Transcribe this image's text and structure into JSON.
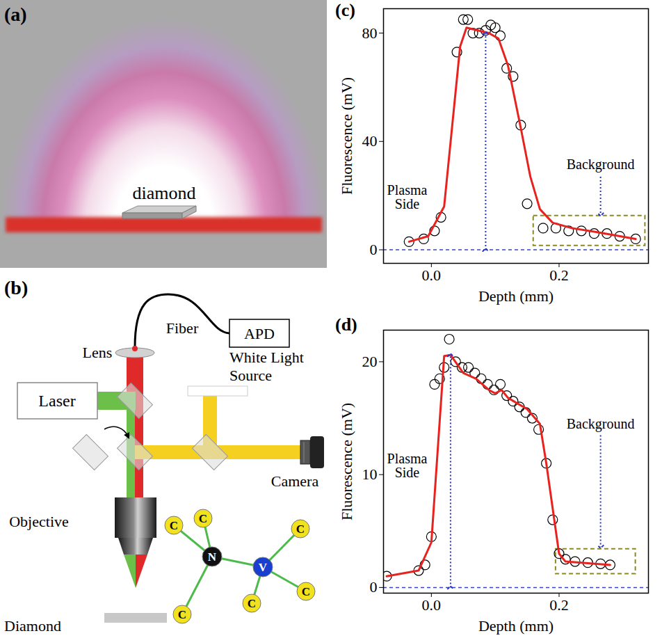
{
  "diagrams": {
    "a": {
      "panel": "(a)",
      "label": "diamond"
    },
    "b": {
      "panel": "(b)",
      "lens": "Lens",
      "fiber": "Fiber",
      "detector": "APD",
      "light_source": "White Light Source",
      "laser": "Laser",
      "camera": "Camera",
      "objective": "Objective",
      "sample": "Diamond",
      "atoms": [
        "C",
        "C",
        "N",
        "V",
        "C",
        "C",
        "C",
        "C"
      ]
    }
  },
  "chart_data": [
    {
      "panel": "(c)",
      "type": "scatter",
      "xlabel": "Depth (mm)",
      "ylabel": "Fluorescence (mV)",
      "xlim": [
        -0.075,
        0.34
      ],
      "ylim": [
        -5,
        89
      ],
      "xticks": [
        {
          "value": 0,
          "label": "0.0"
        },
        {
          "value": 0.2,
          "label": "0.2"
        }
      ],
      "yticks": [
        0,
        40,
        80
      ],
      "series": [
        {
          "type": "scatter",
          "marker": "circle",
          "color": "#000000",
          "x": [
            -0.035,
            -0.012,
            0.005,
            0.015,
            0.04,
            0.05,
            0.057,
            0.065,
            0.075,
            0.085,
            0.093,
            0.1,
            0.108,
            0.118,
            0.128,
            0.14,
            0.15,
            0.175,
            0.195,
            0.215,
            0.235,
            0.255,
            0.275,
            0.295,
            0.32
          ],
          "values": [
            3,
            4,
            7,
            12,
            73,
            85,
            85,
            80,
            80,
            81,
            83,
            82,
            79,
            67,
            64,
            46,
            17,
            8,
            8,
            7,
            7,
            6,
            6,
            5,
            4
          ]
        },
        {
          "type": "line",
          "line_style": "solid",
          "color": "#e8231f",
          "x": [
            -0.035,
            -0.005,
            0.02,
            0.045,
            0.055,
            0.09,
            0.105,
            0.12,
            0.14,
            0.155,
            0.17,
            0.19,
            0.22,
            0.26,
            0.32
          ],
          "values": [
            3,
            5,
            16,
            75,
            82,
            80,
            78,
            68,
            45,
            27,
            15,
            10,
            8,
            6.5,
            4
          ]
        }
      ],
      "hline": 0,
      "annotations": [
        {
          "text": "Plasma Side",
          "x": -0.038,
          "y": 19.5
        },
        {
          "text": "Background",
          "x": 0.265,
          "y": 31.5
        }
      ],
      "peak_arrow": {
        "x": 0.085,
        "y": [
          0,
          80
        ]
      },
      "background_arrow": {
        "x": 0.265,
        "y": [
          27,
          13
        ]
      },
      "background_box": {
        "x": [
          0.16,
          0.335
        ],
        "y": [
          1.5,
          12.5
        ]
      }
    },
    {
      "panel": "(d)",
      "type": "scatter",
      "xlabel": "Depth (mm)",
      "ylabel": "Fluorescence (mV)",
      "xlim": [
        -0.075,
        0.34
      ],
      "ylim": [
        -0.5,
        22.8
      ],
      "xticks": [
        {
          "value": 0,
          "label": "0.0"
        },
        {
          "value": 0.2,
          "label": "0.2"
        }
      ],
      "yticks": [
        0,
        10,
        20
      ],
      "series": [
        {
          "type": "scatter",
          "marker": "circle",
          "color": "#000000",
          "x": [
            -0.07,
            -0.02,
            -0.01,
            0,
            0.005,
            0.013,
            0.02,
            0.028,
            0.038,
            0.048,
            0.058,
            0.068,
            0.078,
            0.088,
            0.098,
            0.108,
            0.118,
            0.128,
            0.138,
            0.148,
            0.158,
            0.168,
            0.18,
            0.19,
            0.2,
            0.21,
            0.225,
            0.245,
            0.265,
            0.28
          ],
          "values": [
            1,
            1.5,
            2,
            4.5,
            18,
            18.5,
            19.5,
            22,
            20,
            19.5,
            19.5,
            19,
            18.5,
            18,
            17.5,
            18,
            17,
            16.5,
            16,
            15.5,
            15,
            14,
            11,
            6,
            3,
            2.5,
            2.3,
            2.2,
            2.1,
            2
          ]
        },
        {
          "type": "line",
          "line_style": "solid",
          "color": "#e8231f",
          "x": [
            -0.07,
            -0.02,
            0,
            0.02,
            0.03,
            0.05,
            0.07,
            0.09,
            0.1,
            0.11,
            0.12,
            0.15,
            0.17,
            0.18,
            0.2,
            0.21,
            0.28
          ],
          "values": [
            1,
            1.5,
            4,
            20.5,
            20.6,
            19,
            18.5,
            17.5,
            17.2,
            17.5,
            16.8,
            15.8,
            14.5,
            11,
            3,
            2.3,
            2
          ]
        }
      ],
      "hline": 0,
      "annotations": [
        {
          "text": "Plasma Side",
          "x": -0.038,
          "y": 10.8
        },
        {
          "text": "Background",
          "x": 0.265,
          "y": 14.5
        }
      ],
      "peak_arrow": {
        "x": 0.03,
        "y": [
          0,
          20.6
        ]
      },
      "background_arrow": {
        "x": 0.265,
        "y": [
          13.5,
          3.6
        ]
      },
      "background_box": {
        "x": [
          0.195,
          0.32
        ],
        "y": [
          1.2,
          3.4
        ]
      }
    }
  ]
}
